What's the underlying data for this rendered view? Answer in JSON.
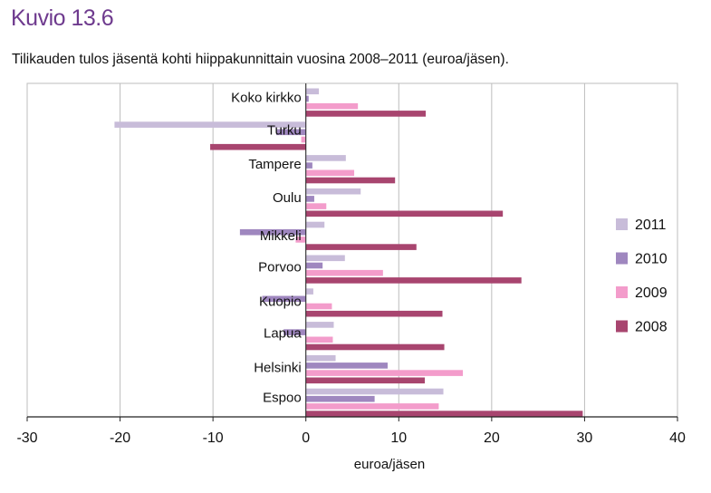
{
  "figure_label": "Kuvio 13.6",
  "chart_data": {
    "type": "bar",
    "orientation": "horizontal",
    "title": "Tilikauden tulos jäsentä kohti hiippakunnittain vuosina 2008–2011 (euroa/jäsen).",
    "xlabel": "euroa/jäsen",
    "ylabel": "",
    "xlim": [
      -30,
      40
    ],
    "x_ticks": [
      -30,
      -20,
      -10,
      0,
      10,
      20,
      30,
      40
    ],
    "grid": "vertical",
    "legend_position": "right",
    "categories": [
      "Koko kirkko",
      "Turku",
      "Tampere",
      "Oulu",
      "Mikkeli",
      "Porvoo",
      "Kuopio",
      "Lapua",
      "Helsinki",
      "Espoo"
    ],
    "series": [
      {
        "name": "2011",
        "color": "#c8bcd9",
        "values": [
          1.4,
          -20.6,
          4.3,
          5.9,
          2.0,
          4.2,
          0.8,
          3.0,
          3.2,
          14.8
        ]
      },
      {
        "name": "2010",
        "color": "#9f87bf",
        "values": [
          0.3,
          -3.2,
          0.7,
          0.9,
          -7.1,
          1.8,
          -4.7,
          -2.4,
          8.8,
          7.4
        ]
      },
      {
        "name": "2009",
        "color": "#f39ccb",
        "values": [
          5.6,
          -0.5,
          5.2,
          2.2,
          -1.1,
          8.3,
          2.8,
          2.9,
          16.9,
          14.3
        ]
      },
      {
        "name": "2008",
        "color": "#a8456f",
        "values": [
          12.9,
          -10.3,
          9.6,
          21.2,
          11.9,
          23.2,
          14.7,
          14.9,
          12.8,
          29.8
        ]
      }
    ]
  }
}
